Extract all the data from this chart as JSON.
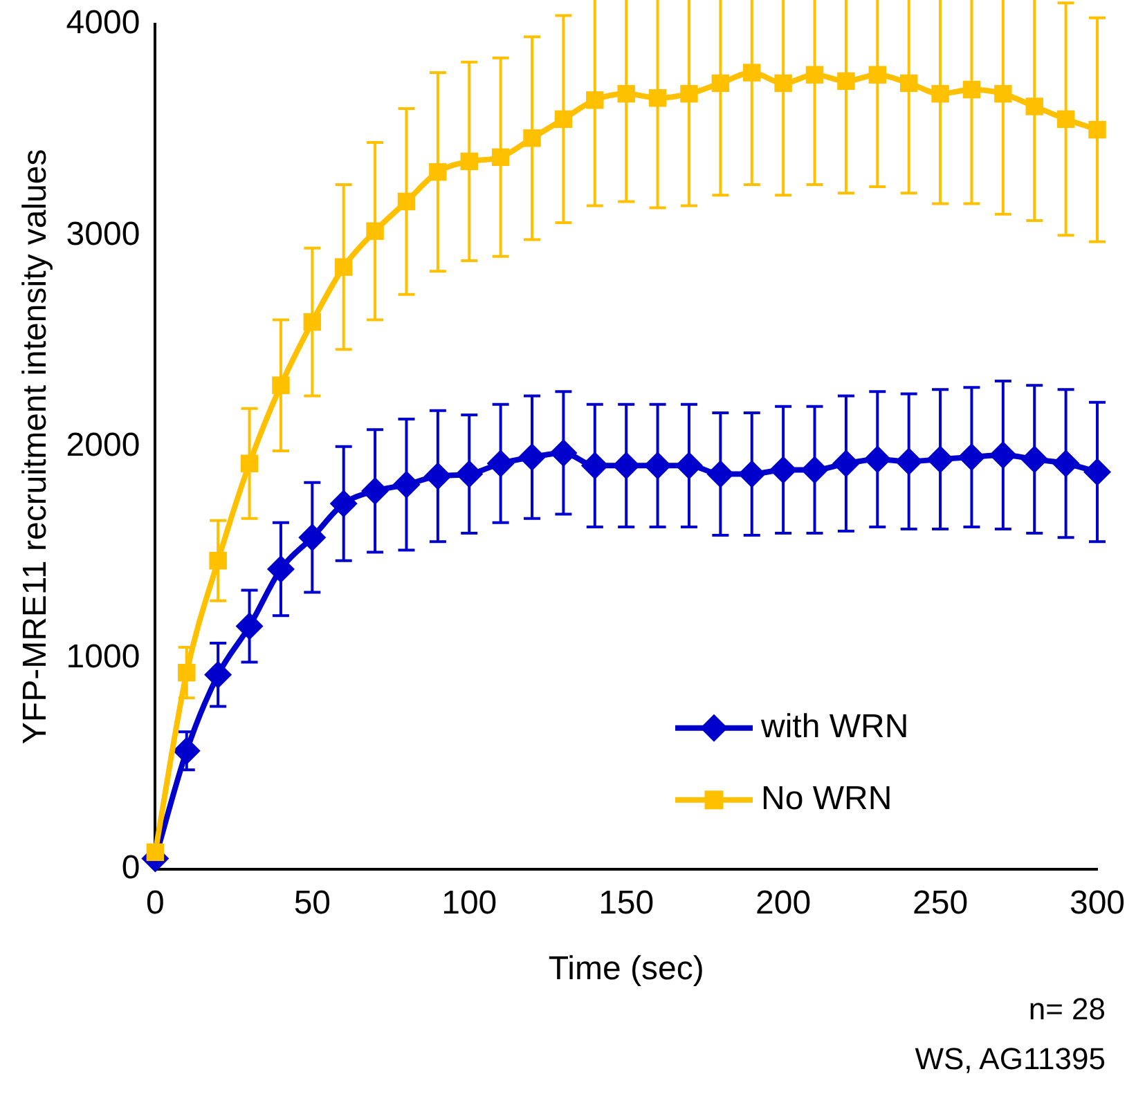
{
  "chart_data": {
    "type": "line",
    "xlabel": "Time (sec)",
    "ylabel": "YFP-MRE11 recruitment intensity values",
    "x": [
      0,
      10,
      20,
      30,
      40,
      50,
      60,
      70,
      80,
      90,
      100,
      110,
      120,
      130,
      140,
      150,
      160,
      170,
      180,
      190,
      200,
      210,
      220,
      230,
      240,
      250,
      260,
      270,
      280,
      290,
      300
    ],
    "series": [
      {
        "name": "with WRN",
        "color": "#0000cc",
        "marker": "diamond",
        "values": [
          50,
          560,
          920,
          1150,
          1420,
          1570,
          1730,
          1790,
          1820,
          1860,
          1870,
          1920,
          1950,
          1970,
          1910,
          1910,
          1910,
          1910,
          1870,
          1870,
          1890,
          1890,
          1920,
          1940,
          1930,
          1940,
          1950,
          1960,
          1940,
          1920,
          1880
        ],
        "errors": [
          null,
          90,
          150,
          170,
          220,
          260,
          270,
          290,
          310,
          310,
          280,
          280,
          290,
          290,
          290,
          290,
          290,
          290,
          290,
          290,
          300,
          300,
          320,
          320,
          320,
          330,
          330,
          350,
          350,
          350,
          330
        ]
      },
      {
        "name": "No WRN",
        "color": "#ffc000",
        "marker": "square",
        "values": [
          80,
          930,
          1460,
          1920,
          2290,
          2590,
          2850,
          3020,
          3160,
          3300,
          3350,
          3370,
          3460,
          3550,
          3640,
          3670,
          3650,
          3670,
          3720,
          3770,
          3720,
          3760,
          3730,
          3760,
          3720,
          3670,
          3690,
          3670,
          3610,
          3550,
          3500
        ],
        "errors": [
          null,
          120,
          190,
          260,
          310,
          350,
          390,
          420,
          440,
          470,
          470,
          470,
          480,
          490,
          500,
          510,
          520,
          530,
          530,
          530,
          530,
          520,
          530,
          530,
          520,
          520,
          540,
          570,
          540,
          550,
          530
        ]
      }
    ],
    "xlim": [
      0,
      300
    ],
    "xticks": [
      0,
      50,
      100,
      150,
      200,
      250,
      300
    ],
    "ylim": [
      0,
      4000
    ],
    "yticks": [
      0,
      1000,
      2000,
      3000,
      4000
    ],
    "grid": false,
    "legend": "bottom right",
    "line_style": "solid",
    "annotations": [
      "n= 28",
      "WS, AG11395"
    ]
  }
}
